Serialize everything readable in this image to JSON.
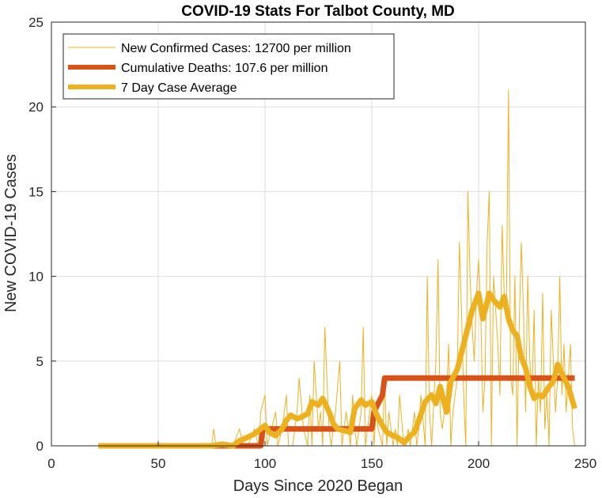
{
  "chart_data": {
    "type": "line",
    "title": "COVID-19 Stats For Talbot County, MD",
    "xlabel": "Days Since 2020 Began",
    "ylabel": "New COVID-19 Cases",
    "xlim": [
      0,
      250
    ],
    "ylim": [
      0,
      25
    ],
    "xticks": [
      0,
      50,
      100,
      150,
      200,
      250
    ],
    "yticks": [
      0,
      5,
      10,
      15,
      20,
      25
    ],
    "grid": true,
    "legend_position": "top-left",
    "series": [
      {
        "name": "New Confirmed Cases: 12700 per million",
        "color": "#EDB120",
        "x": [
          22,
          30,
          40,
          50,
          60,
          70,
          75,
          76,
          77,
          80,
          85,
          88,
          90,
          92,
          95,
          97,
          98,
          100,
          101,
          103,
          105,
          106,
          108,
          110,
          111,
          113,
          115,
          116,
          118,
          120,
          121,
          122,
          123,
          125,
          126,
          127,
          128,
          130,
          131,
          133,
          135,
          136,
          137,
          138,
          140,
          141,
          142,
          143,
          145,
          146,
          147,
          148,
          150,
          151,
          152,
          153,
          155,
          156,
          157,
          158,
          160,
          161,
          162,
          163,
          165,
          166,
          167,
          168,
          170,
          171,
          172,
          173,
          175,
          176,
          177,
          178,
          180,
          181,
          182,
          183,
          185,
          186,
          187,
          188,
          190,
          191,
          192,
          193,
          194,
          195,
          196,
          197,
          198,
          199,
          200,
          201,
          202,
          203,
          204,
          205,
          206,
          207,
          208,
          209,
          210,
          211,
          212,
          213,
          214,
          215,
          216,
          217,
          218,
          219,
          220,
          221,
          222,
          223,
          224,
          225,
          226,
          227,
          228,
          229,
          230,
          231,
          232,
          233,
          234,
          235,
          236,
          237,
          238,
          239,
          240,
          241,
          242,
          243,
          244,
          245
        ],
        "values": [
          0,
          0,
          0,
          0,
          0,
          0,
          0,
          1,
          0,
          0,
          0,
          1,
          0,
          0,
          1,
          0,
          2,
          3,
          0,
          1,
          2,
          0,
          1,
          3,
          0,
          0,
          2,
          4,
          1,
          0,
          3,
          0,
          5,
          1,
          2,
          0,
          7,
          1,
          0,
          2,
          5,
          0,
          1,
          2,
          0,
          3,
          1,
          0,
          2,
          7,
          0,
          1,
          3,
          0,
          2,
          1,
          0,
          4,
          0,
          2,
          0,
          1,
          0,
          3,
          0,
          0,
          1,
          0,
          2,
          0,
          1,
          3,
          0,
          10,
          2,
          0,
          5,
          11,
          2,
          1,
          3,
          6,
          0,
          2,
          4,
          12,
          8,
          3,
          0,
          15,
          10,
          7,
          5,
          9,
          11,
          8,
          2,
          4,
          12,
          15,
          0,
          10,
          8,
          6,
          3,
          13,
          9,
          8,
          21,
          4,
          3,
          10,
          0,
          7,
          12,
          8,
          2,
          10,
          5,
          3,
          8,
          0,
          4,
          2,
          9,
          1,
          3,
          0,
          8,
          5,
          2,
          4,
          10,
          3,
          6,
          2,
          4,
          6,
          1,
          0
        ]
      },
      {
        "name": "Cumulative Deaths: 107.6 per million",
        "color": "#D95319",
        "x": [
          22,
          98,
          99,
          150,
          151,
          155,
          156,
          245
        ],
        "values": [
          0,
          0,
          1,
          1,
          2,
          3,
          4,
          4
        ]
      },
      {
        "name": "7 Day Case Average",
        "color": "#EDB120",
        "x": [
          22,
          30,
          40,
          50,
          60,
          70,
          75,
          80,
          85,
          88,
          90,
          95,
          97,
          100,
          102,
          105,
          108,
          110,
          112,
          115,
          117,
          120,
          122,
          125,
          127,
          130,
          132,
          134,
          137,
          140,
          142,
          145,
          147,
          150,
          152,
          155,
          157,
          160,
          162,
          165,
          168,
          170,
          172,
          175,
          178,
          180,
          182,
          185,
          187,
          190,
          192,
          195,
          197,
          200,
          202,
          205,
          207,
          210,
          212,
          214,
          216,
          218,
          220,
          222,
          224,
          226,
          228,
          230,
          233,
          235,
          237,
          240,
          242,
          245
        ],
        "values": [
          0,
          0,
          0,
          0,
          0,
          0,
          0,
          0.1,
          0,
          0.3,
          0.4,
          0.7,
          0.9,
          1.2,
          0.8,
          0.6,
          1.0,
          1.5,
          1.8,
          1.6,
          1.7,
          1.9,
          2.6,
          2.4,
          2.8,
          2.0,
          1.3,
          1.0,
          0.9,
          0.8,
          2.2,
          2.7,
          2.4,
          2.6,
          1.9,
          1.2,
          0.8,
          0.6,
          0.5,
          0.2,
          0.6,
          0.8,
          1.5,
          2.6,
          3.0,
          2.5,
          3.5,
          2.0,
          3.8,
          4.5,
          5.5,
          7.0,
          8.0,
          9.0,
          7.5,
          9.0,
          8.6,
          8.2,
          8.8,
          7.5,
          6.8,
          6.5,
          5.2,
          4.6,
          3.5,
          2.8,
          3.0,
          2.9,
          3.5,
          3.8,
          4.8,
          4.0,
          3.5,
          2.2
        ]
      }
    ]
  }
}
